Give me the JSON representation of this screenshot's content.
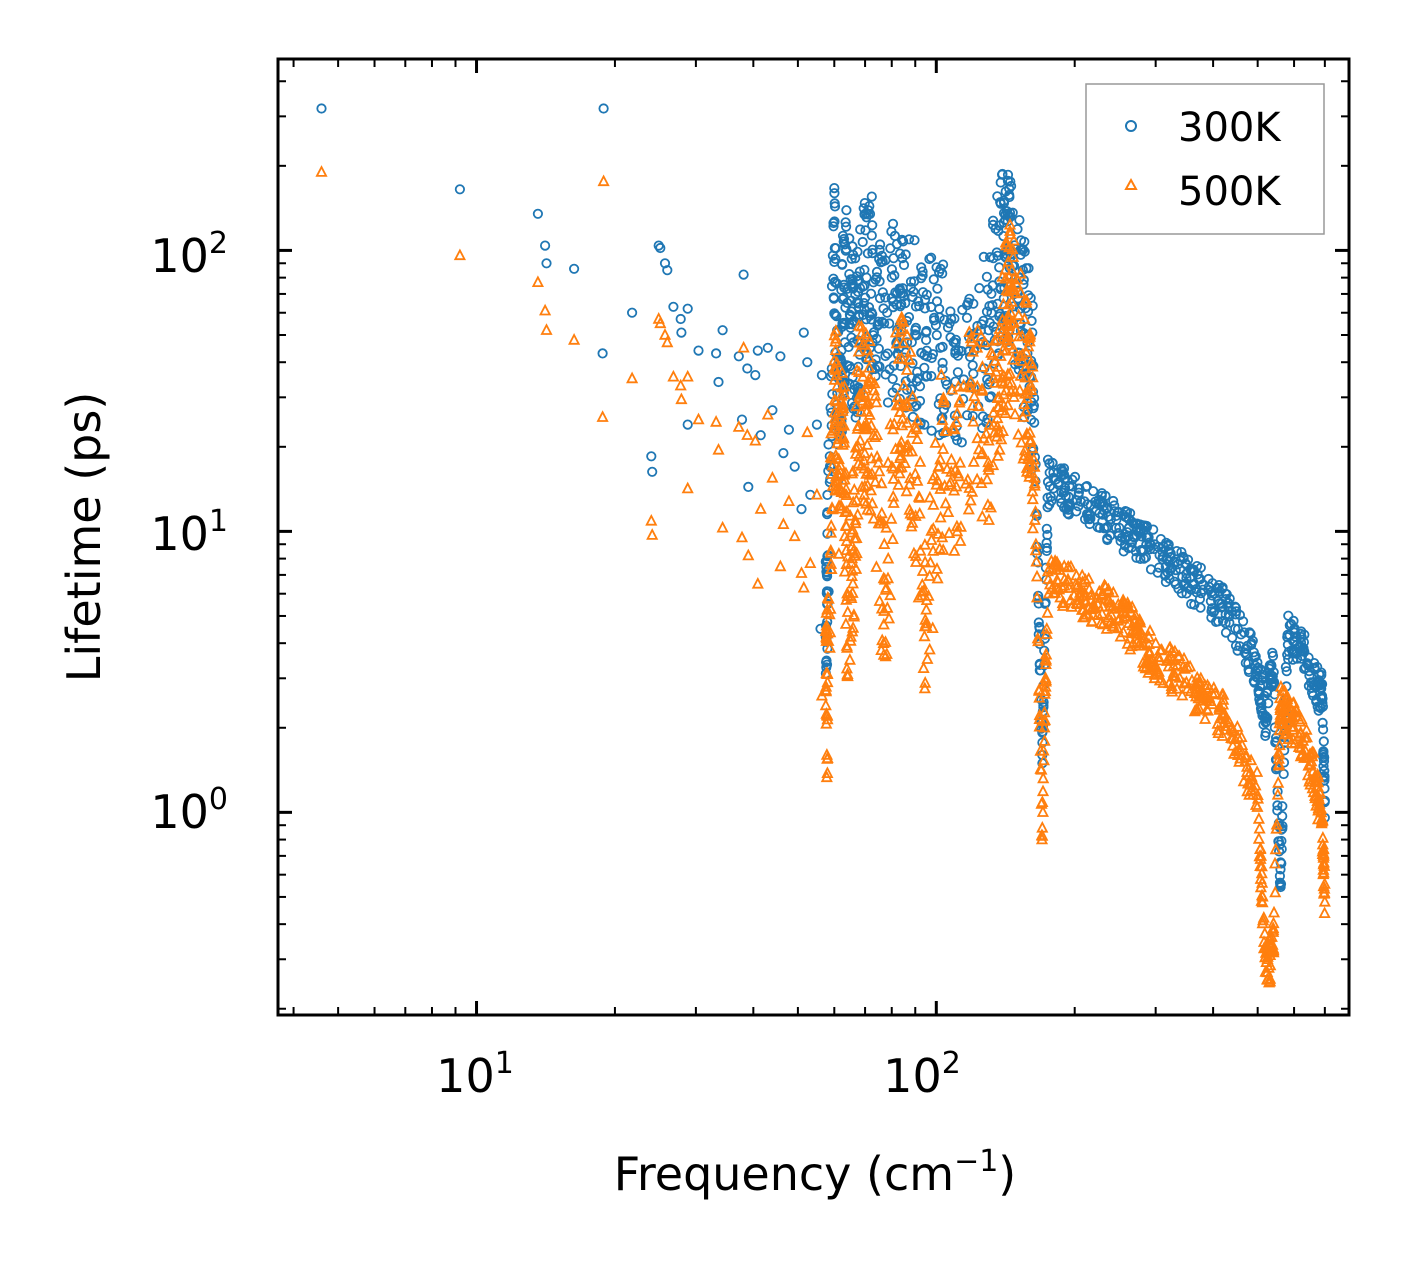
{
  "chart_data": {
    "type": "scatter",
    "title": "",
    "xlabel": "Frequency (cm",
    "xlabel_sup": "−1",
    "xlabel_end": ")",
    "ylabel": "Lifetime (ps)",
    "xscale": "log",
    "yscale": "log",
    "xlim": [
      3.7,
      790
    ],
    "ylim": [
      0.19,
      480
    ],
    "x_ticks": [
      {
        "base": "10",
        "exp": "1",
        "value": 10
      },
      {
        "base": "10",
        "exp": "2",
        "value": 100
      }
    ],
    "y_ticks": [
      {
        "base": "10",
        "exp": "0",
        "value": 1
      },
      {
        "base": "10",
        "exp": "1",
        "value": 10
      },
      {
        "base": "10",
        "exp": "2",
        "value": 100
      }
    ],
    "legend_position": "top-right",
    "series": [
      {
        "name": "300K",
        "marker": "circle-open",
        "color": "#1f77b4",
        "points": [
          [
            4.6,
            320
          ],
          [
            9.2,
            165
          ],
          [
            13.6,
            135
          ],
          [
            14.1,
            104
          ],
          [
            14.2,
            90
          ],
          [
            16.3,
            86
          ],
          [
            18.9,
            320
          ],
          [
            18.8,
            43
          ],
          [
            21.8,
            60
          ],
          [
            24.0,
            18.5
          ],
          [
            24.1,
            16.3
          ],
          [
            24.9,
            104
          ],
          [
            25.1,
            102
          ],
          [
            25.7,
            90
          ],
          [
            26.0,
            85
          ],
          [
            26.8,
            63
          ],
          [
            27.8,
            57
          ],
          [
            27.9,
            51
          ],
          [
            28.8,
            62
          ],
          [
            28.8,
            24
          ],
          [
            30.4,
            44
          ],
          [
            33.2,
            43
          ],
          [
            33.6,
            34
          ],
          [
            34.3,
            52
          ],
          [
            37.2,
            42
          ],
          [
            37.8,
            25
          ],
          [
            38.1,
            82
          ],
          [
            38.8,
            38
          ],
          [
            39.0,
            14.4
          ],
          [
            40.4,
            36
          ],
          [
            40.9,
            44
          ],
          [
            41.5,
            22
          ],
          [
            43.0,
            45
          ],
          [
            44.0,
            27
          ],
          [
            45.8,
            42
          ],
          [
            46.5,
            19
          ],
          [
            47.8,
            23
          ],
          [
            49.2,
            17
          ],
          [
            50.9,
            12
          ],
          [
            51.5,
            51
          ],
          [
            52.4,
            40
          ],
          [
            53.2,
            13.5
          ],
          [
            55.0,
            24
          ],
          [
            56.4,
            36
          ],
          [
            56.0,
            4.5
          ],
          [
            57.5,
            4.2
          ],
          [
            58.0,
            7.8
          ],
          [
            60.0,
            91
          ],
          [
            61.2,
            26
          ],
          [
            62.7,
            55
          ],
          [
            64.0,
            73
          ],
          [
            66.0,
            47
          ],
          [
            68.0,
            59
          ],
          [
            70.5,
            80
          ],
          [
            73.0,
            77
          ],
          [
            77.0,
            55
          ],
          [
            82.0,
            64
          ],
          [
            85.0,
            55
          ],
          [
            90.0,
            52
          ],
          [
            95.0,
            48
          ],
          [
            102.0,
            45
          ],
          [
            110.0,
            43
          ],
          [
            120.0,
            39
          ],
          [
            130.0,
            52
          ],
          [
            137.0,
            87
          ],
          [
            142.0,
            97
          ],
          [
            145.0,
            97
          ],
          [
            152.0,
            62
          ],
          [
            158.0,
            47
          ],
          [
            163.0,
            28
          ],
          [
            170.0,
            1.6
          ],
          [
            175.0,
            15
          ],
          [
            190.0,
            14
          ],
          [
            210.0,
            12.8
          ],
          [
            230.0,
            11.5
          ],
          [
            250.0,
            10.3
          ],
          [
            270.0,
            9.5
          ],
          [
            290.0,
            8.8
          ],
          [
            320.0,
            7.8
          ],
          [
            350.0,
            6.8
          ],
          [
            380.0,
            6.2
          ],
          [
            420.0,
            5.4
          ],
          [
            460.0,
            4.3
          ],
          [
            500.0,
            3.2
          ],
          [
            520.0,
            2.2
          ],
          [
            540.0,
            3.6
          ],
          [
            560.0,
            0.55
          ],
          [
            580.0,
            4.2
          ],
          [
            620.0,
            3.9
          ],
          [
            660.0,
            2.9
          ],
          [
            690.0,
            2.6
          ],
          [
            700.0,
            1.1
          ]
        ]
      },
      {
        "name": "500K",
        "marker": "triangle-open",
        "color": "#ff7f0e",
        "points": [
          [
            4.6,
            190
          ],
          [
            9.2,
            96
          ],
          [
            13.6,
            77
          ],
          [
            14.1,
            61
          ],
          [
            14.2,
            52
          ],
          [
            16.3,
            48
          ],
          [
            18.9,
            176
          ],
          [
            18.8,
            25.5
          ],
          [
            21.8,
            35
          ],
          [
            24.0,
            10.9
          ],
          [
            24.1,
            9.7
          ],
          [
            24.9,
            57
          ],
          [
            25.1,
            55
          ],
          [
            25.7,
            50
          ],
          [
            26.0,
            47
          ],
          [
            26.8,
            35.5
          ],
          [
            27.8,
            33
          ],
          [
            27.9,
            29.5
          ],
          [
            28.8,
            35.5
          ],
          [
            28.8,
            14.2
          ],
          [
            30.4,
            25
          ],
          [
            33.2,
            24.5
          ],
          [
            33.6,
            19.5
          ],
          [
            34.3,
            10.3
          ],
          [
            37.2,
            23.5
          ],
          [
            37.8,
            9.5
          ],
          [
            38.1,
            45
          ],
          [
            38.8,
            22
          ],
          [
            39.0,
            8.2
          ],
          [
            40.4,
            21
          ],
          [
            40.9,
            6.5
          ],
          [
            41.5,
            12
          ],
          [
            43.0,
            26
          ],
          [
            44.0,
            15.5
          ],
          [
            45.8,
            7.5
          ],
          [
            46.5,
            10.6
          ],
          [
            47.8,
            12.8
          ],
          [
            49.2,
            9.6
          ],
          [
            50.9,
            7.1
          ],
          [
            51.5,
            6.3
          ],
          [
            52.4,
            22.5
          ],
          [
            53.2,
            7.7
          ],
          [
            55.0,
            13.5
          ],
          [
            56.4,
            2.6
          ],
          [
            57.5,
            2.4
          ],
          [
            58.0,
            2.9
          ],
          [
            60.0,
            38
          ],
          [
            61.2,
            14
          ],
          [
            62.7,
            28
          ],
          [
            64.0,
            6.0
          ],
          [
            66.0,
            8.5
          ],
          [
            68.0,
            30
          ],
          [
            70.5,
            24
          ],
          [
            73.0,
            22
          ],
          [
            77.0,
            5.2
          ],
          [
            82.0,
            28
          ],
          [
            85.0,
            33
          ],
          [
            90.0,
            16
          ],
          [
            95.0,
            4.7
          ],
          [
            102.0,
            18
          ],
          [
            110.0,
            16.5
          ],
          [
            120.0,
            28
          ],
          [
            130.0,
            21
          ],
          [
            137.0,
            30
          ],
          [
            142.0,
            55
          ],
          [
            145.0,
            60
          ],
          [
            152.0,
            42
          ],
          [
            158.0,
            31
          ],
          [
            163.0,
            18
          ],
          [
            170.0,
            0.88
          ],
          [
            175.0,
            7.2
          ],
          [
            190.0,
            6.4
          ],
          [
            210.0,
            5.9
          ],
          [
            230.0,
            5.4
          ],
          [
            250.0,
            4.9
          ],
          [
            270.0,
            4.4
          ],
          [
            290.0,
            3.7
          ],
          [
            320.0,
            3.3
          ],
          [
            350.0,
            2.9
          ],
          [
            380.0,
            2.5
          ],
          [
            420.0,
            2.2
          ],
          [
            460.0,
            1.6
          ],
          [
            500.0,
            1.15
          ],
          [
            520.0,
            0.27
          ],
          [
            540.0,
            0.32
          ],
          [
            560.0,
            2.4
          ],
          [
            580.0,
            2.2
          ],
          [
            620.0,
            1.9
          ],
          [
            660.0,
            1.4
          ],
          [
            690.0,
            0.95
          ],
          [
            700.0,
            0.48
          ]
        ]
      }
    ]
  }
}
